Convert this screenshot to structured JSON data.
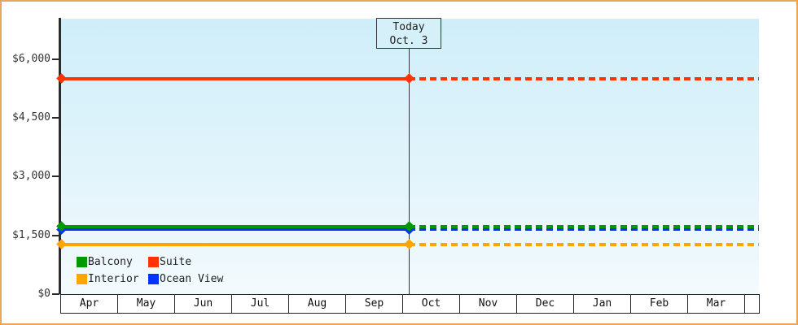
{
  "chart": {
    "legend": [
      {
        "name": "Balcony",
        "color": "#009900"
      },
      {
        "name": "Suite",
        "color": "#FF3300"
      },
      {
        "name": "Interior",
        "color": "#FFA500"
      },
      {
        "name": "Ocean View",
        "color": "#0033FF"
      }
    ],
    "colors": {
      "frame_border": "#EAA75C",
      "axis": "#2b2b2b",
      "plot_bg_top": "#CFEEFA",
      "plot_bg_bottom": "#F3FAFD",
      "today_box_bg": "#D6F0FA"
    }
  },
  "chart_data": {
    "type": "line",
    "x_categories": [
      "Apr",
      "May",
      "Jun",
      "Jul",
      "Aug",
      "Sep",
      "Oct",
      "Nov",
      "Dec",
      "Jan",
      "Feb",
      "Mar"
    ],
    "ytick_labels": [
      "$0",
      "$1,500",
      "$3,000",
      "$4,500",
      "$6,000"
    ],
    "yticks": [
      0,
      1500,
      3000,
      4500,
      6000
    ],
    "ylim": [
      0,
      7030
    ],
    "series": [
      {
        "name": "Suite",
        "color": "#FF3300",
        "value": 5500
      },
      {
        "name": "Balcony",
        "color": "#009900",
        "value": 1725
      },
      {
        "name": "Ocean View",
        "color": "#0033FF",
        "value": 1650
      },
      {
        "name": "Interior",
        "color": "#FFA500",
        "value": 1275
      }
    ],
    "series_note": "each series is a constant (flat) price line across the whole x range; solid with diamond endpoint markers up to Today, dashed projection after Today to the right edge",
    "annotation": {
      "label": "Today",
      "date": "Oct. 3",
      "month": "Oct",
      "day": 3
    },
    "legend_position": "bottom-left inside plot",
    "grid": "off"
  }
}
